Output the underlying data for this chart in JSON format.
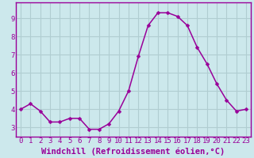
{
  "x": [
    0,
    1,
    2,
    3,
    4,
    5,
    6,
    7,
    8,
    9,
    10,
    11,
    12,
    13,
    14,
    15,
    16,
    17,
    18,
    19,
    20,
    21,
    22,
    23
  ],
  "y": [
    4.0,
    4.3,
    3.9,
    3.3,
    3.3,
    3.5,
    3.5,
    2.9,
    2.9,
    3.2,
    3.9,
    5.0,
    6.9,
    8.6,
    9.3,
    9.3,
    9.1,
    8.6,
    7.4,
    6.5,
    5.4,
    4.5,
    3.9,
    4.0
  ],
  "line_color": "#990099",
  "marker": "D",
  "marker_size": 2.5,
  "background_color": "#cce8ec",
  "grid_color": "#b0cdd1",
  "xlabel": "Windchill (Refroidissement éolien,°C)",
  "ylabel": "",
  "ylim": [
    2.5,
    9.85
  ],
  "xlim": [
    -0.5,
    23.5
  ],
  "yticks": [
    3,
    4,
    5,
    6,
    7,
    8,
    9
  ],
  "xticks": [
    0,
    1,
    2,
    3,
    4,
    5,
    6,
    7,
    8,
    9,
    10,
    11,
    12,
    13,
    14,
    15,
    16,
    17,
    18,
    19,
    20,
    21,
    22,
    23
  ],
  "tick_label_fontsize": 6.5,
  "xlabel_fontsize": 7.5,
  "axis_color": "#990099",
  "spine_color": "#990099"
}
